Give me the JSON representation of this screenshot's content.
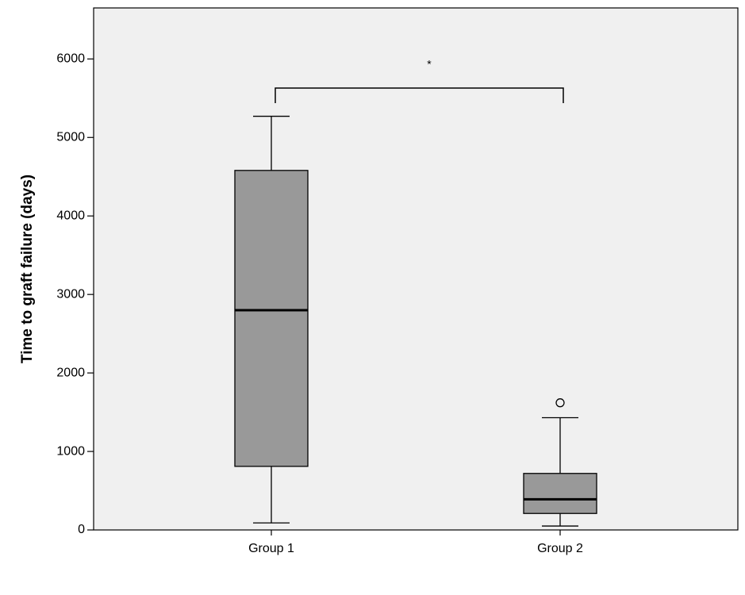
{
  "chart_data": {
    "type": "box",
    "y_label": "Time to graft failure (days)",
    "categories": [
      "Group 1",
      "Group 2"
    ],
    "boxes": [
      {
        "whisker_low": 90,
        "q1": 810,
        "median": 2800,
        "q3": 4580,
        "whisker_high": 5270,
        "outliers": []
      },
      {
        "whisker_low": 50,
        "q1": 210,
        "median": 390,
        "q3": 720,
        "whisker_high": 1430,
        "outliers": [
          1620
        ]
      }
    ],
    "color": "#999999",
    "background": "#f0f0f0",
    "annotation": "*",
    "ylim": [
      0,
      6650
    ],
    "yticks": [
      0,
      1000,
      2000,
      3000,
      4000,
      5000,
      6000
    ],
    "grid": false
  }
}
